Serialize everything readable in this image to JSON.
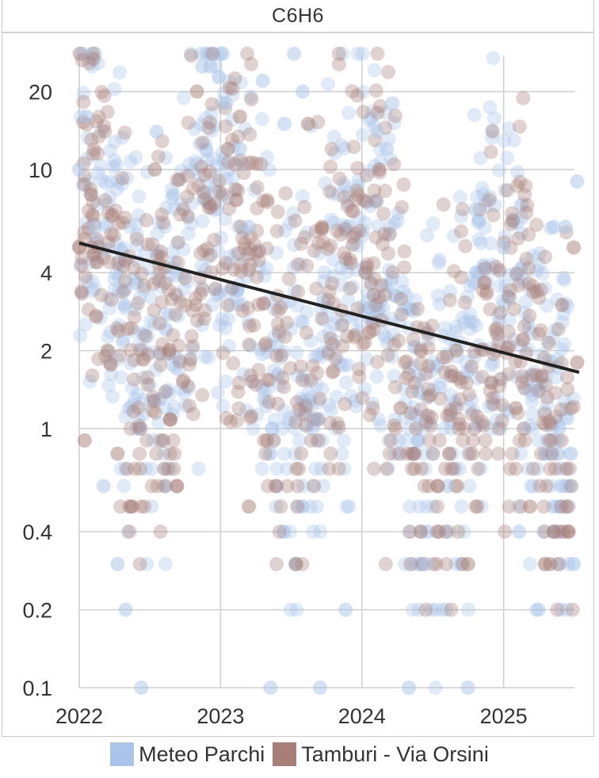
{
  "chart_data": {
    "type": "scatter",
    "title": "C6H6",
    "xlabel": "",
    "ylabel": "",
    "y_scale": "log",
    "ylim": [
      0.1,
      30
    ],
    "xlim": [
      "2022-01-01",
      "2025-07-15"
    ],
    "grid": true,
    "legend_position": "bottom",
    "x_ticks": [
      "2022",
      "2023",
      "2024",
      "2025"
    ],
    "y_ticks": [
      "0.1",
      "0.2",
      "0.4",
      "1",
      "2",
      "4",
      "10",
      "20"
    ],
    "y_tick_values": [
      0.1,
      0.2,
      0.4,
      1,
      2,
      4,
      10,
      20
    ],
    "series": [
      {
        "name": "Meteo Parchi",
        "color": "#a9c4e8",
        "sample_values": [
          [
            "2022-01-01",
            10
          ],
          [
            "2022-01-20",
            16
          ],
          [
            "2022-02-10",
            6
          ],
          [
            "2022-03-05",
            0.6
          ],
          [
            "2022-04-10",
            0.3
          ],
          [
            "2022-05-01",
            0.2
          ],
          [
            "2022-06-10",
            0.1
          ],
          [
            "2022-07-20",
            14
          ],
          [
            "2022-09-01",
            8
          ],
          [
            "2022-11-15",
            25
          ],
          [
            "2022-12-05",
            25
          ],
          [
            "2023-01-15",
            18
          ],
          [
            "2023-02-20",
            12
          ],
          [
            "2023-03-15",
            6
          ],
          [
            "2023-04-20",
            22
          ],
          [
            "2023-05-10",
            0.1
          ],
          [
            "2023-06-15",
            15
          ],
          [
            "2023-07-10",
            28
          ],
          [
            "2023-08-01",
            20
          ],
          [
            "2023-09-15",
            0.1
          ],
          [
            "2023-11-20",
            0.2
          ],
          [
            "2024-02-10",
            14
          ],
          [
            "2024-03-05",
            12
          ],
          [
            "2024-03-20",
            18
          ],
          [
            "2024-05-01",
            0.1
          ],
          [
            "2024-06-15",
            0.3
          ],
          [
            "2024-08-10",
            0.6
          ],
          [
            "2024-10-01",
            0.1
          ],
          [
            "2024-10-20",
            7
          ],
          [
            "2025-01-01",
            5
          ],
          [
            "2025-02-10",
            0.4
          ],
          [
            "2025-04-01",
            0.2
          ],
          [
            "2025-05-10",
            6
          ],
          [
            "2025-06-10",
            6
          ],
          [
            "2025-07-10",
            9
          ]
        ]
      },
      {
        "name": "Tamburi - Via Orsini",
        "color": "#a77f78",
        "sample_values": [
          [
            "2022-01-01",
            5
          ],
          [
            "2022-01-15",
            0.9
          ],
          [
            "2022-02-01",
            8
          ],
          [
            "2022-03-15",
            2
          ],
          [
            "2022-04-10",
            0.8
          ],
          [
            "2022-05-15",
            0.5
          ],
          [
            "2022-07-15",
            10
          ],
          [
            "2022-09-10",
            0.6
          ],
          [
            "2022-11-01",
            20
          ],
          [
            "2023-01-20",
            12
          ],
          [
            "2023-02-20",
            16
          ],
          [
            "2023-03-15",
            0.5
          ],
          [
            "2023-05-01",
            0.9
          ],
          [
            "2023-07-15",
            0.3
          ],
          [
            "2023-08-15",
            15
          ],
          [
            "2023-09-20",
            6
          ],
          [
            "2024-01-10",
            4
          ],
          [
            "2024-02-15",
            10
          ],
          [
            "2024-04-10",
            1.2
          ],
          [
            "2024-06-01",
            0.4
          ],
          [
            "2024-07-15",
            0.6
          ],
          [
            "2024-09-01",
            2
          ],
          [
            "2024-10-01",
            0.3
          ],
          [
            "2024-12-01",
            1.5
          ],
          [
            "2025-02-01",
            1.2
          ],
          [
            "2025-03-10",
            0.5
          ],
          [
            "2025-05-01",
            0.3
          ],
          [
            "2025-06-01",
            3
          ],
          [
            "2025-07-01",
            5
          ],
          [
            "2025-07-10",
            1.8
          ]
        ]
      },
      {
        "name": "",
        "type": "trend",
        "color": "#222222",
        "values": [
          [
            "2022-01-01",
            5.2
          ],
          [
            "2025-07-15",
            1.65
          ]
        ]
      }
    ]
  }
}
